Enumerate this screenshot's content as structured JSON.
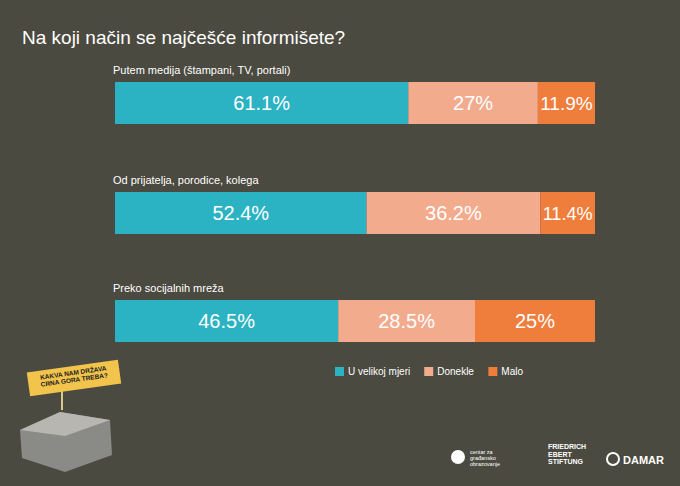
{
  "chart_data": {
    "type": "bar",
    "orientation": "horizontal",
    "stacked": true,
    "data_labels": true,
    "tick_labels": false,
    "grid": false,
    "legend": "bottom",
    "title": "Na koji način se najčešće informišete?",
    "categories": [
      "Putem medija (štampani, TV, portali)",
      "Od prijatelja, porodice, kolega",
      "Preko socijalnih mreža"
    ],
    "xlim": [
      0,
      100
    ],
    "series": [
      {
        "name": "U velikoj mjeri",
        "color": "#2bb3c3",
        "values": [
          61.1,
          52.4,
          46.5
        ],
        "value_labels": [
          "61.1%",
          "52.4%",
          "46.5%"
        ]
      },
      {
        "name": "Donekle",
        "color": "#f3ab8e",
        "values": [
          27,
          36.2,
          28.5
        ],
        "value_labels": [
          "27%",
          "36.2%",
          "28.5%"
        ]
      },
      {
        "name": "Malo",
        "color": "#ef7d3c",
        "values": [
          11.9,
          11.4,
          25
        ],
        "value_labels": [
          "11.9%",
          "11.4%",
          "25%"
        ]
      }
    ],
    "annotations": [
      "KAKVA NAM DRŽAVA CRNA GORA TREBA?",
      "centar za građansko obrazovanje",
      "FRIEDRICH EBERT STIFTUNG",
      "DAMAR"
    ]
  }
}
